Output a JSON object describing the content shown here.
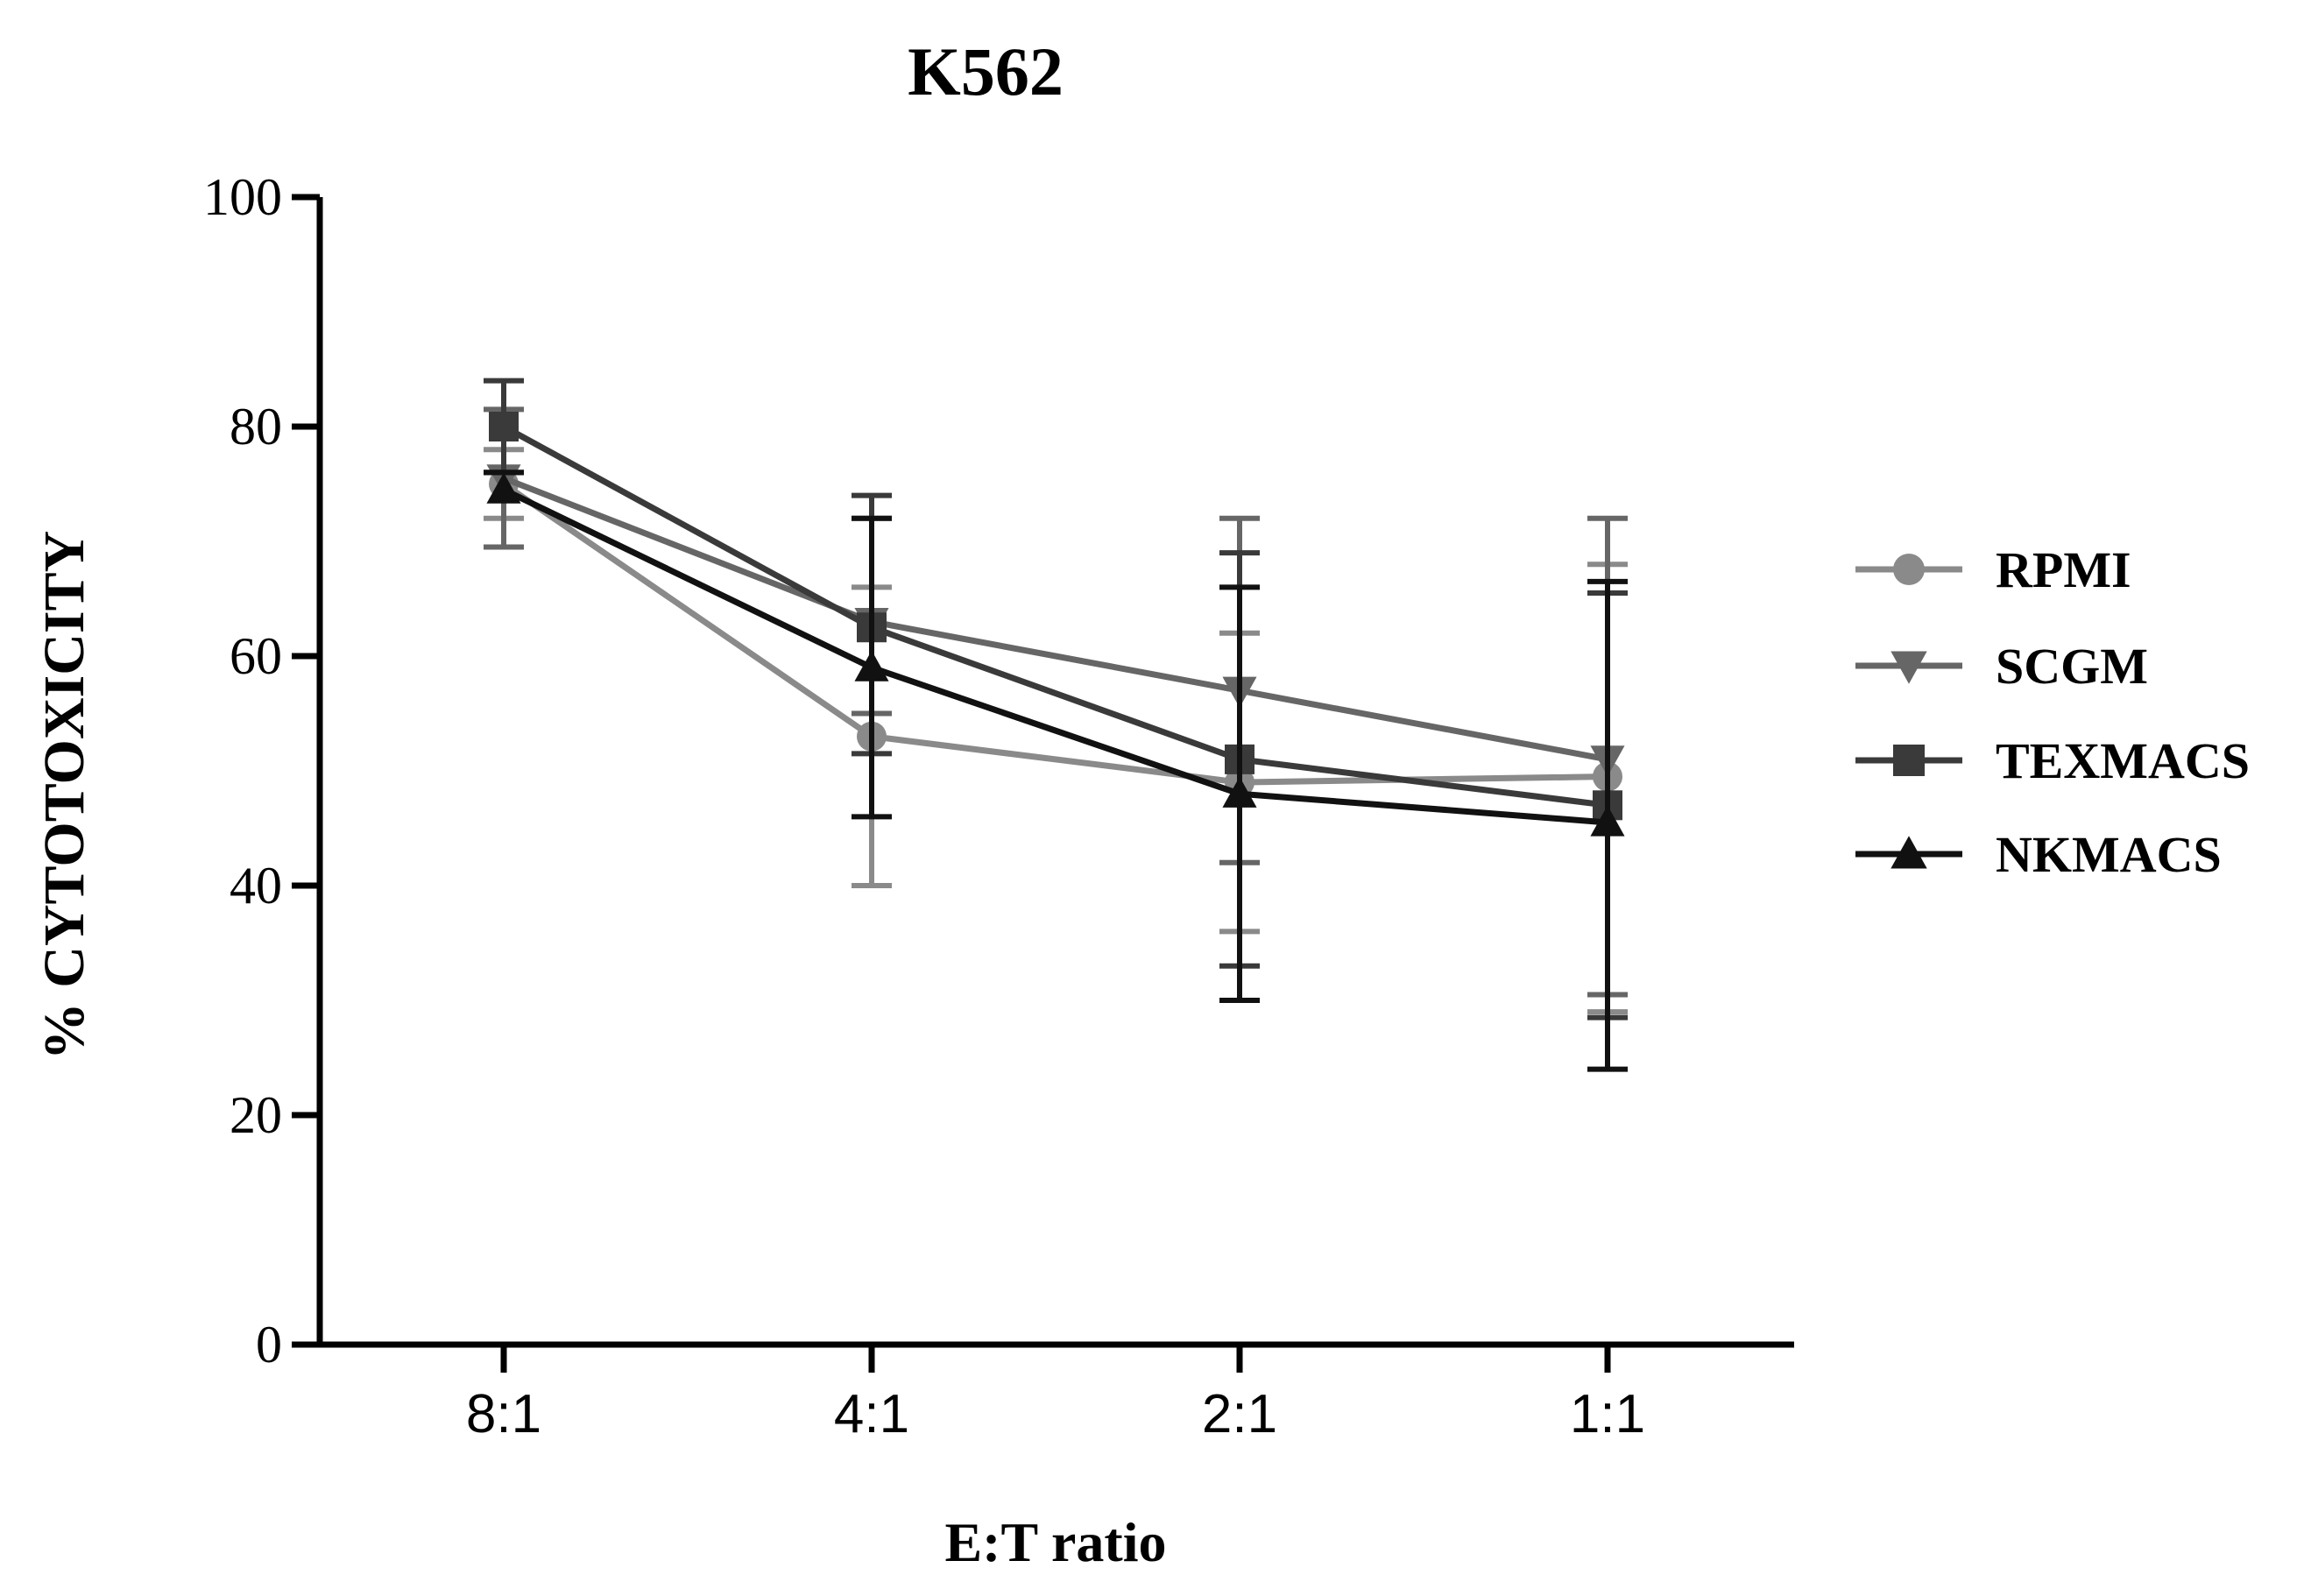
{
  "chart_data": {
    "type": "line",
    "title": "K562",
    "xlabel": "E:T ratio",
    "ylabel": "% CYTOTOXICITY",
    "categories": [
      "8:1",
      "4:1",
      "2:1",
      "1:1"
    ],
    "ylim": [
      0,
      100
    ],
    "yticks": [
      0,
      20,
      40,
      60,
      80,
      100
    ],
    "ytick_labels": [
      "0",
      "20",
      "40",
      "60",
      "80",
      "100"
    ],
    "legend_position": "right",
    "grid": false,
    "series": [
      {
        "name": "RPMI",
        "marker": "circle",
        "color": "#8a8a8a",
        "values": [
          75,
          53,
          49,
          49.5
        ],
        "err_low": [
          72,
          40,
          36,
          29
        ],
        "err_high": [
          78,
          66,
          62,
          68
        ]
      },
      {
        "name": "SCGM",
        "marker": "triangle-down",
        "color": "#666666",
        "values": [
          75.5,
          63,
          57,
          51
        ],
        "err_low": [
          69.5,
          55,
          42,
          30.5
        ],
        "err_high": [
          81.5,
          72,
          72,
          72
        ]
      },
      {
        "name": "TEXMACS",
        "marker": "square",
        "color": "#3a3a3a",
        "values": [
          80,
          62.5,
          51,
          47
        ],
        "err_low": [
          76,
          51.5,
          33,
          28.5
        ],
        "err_high": [
          84,
          74,
          69,
          65.5
        ]
      },
      {
        "name": "NKMACS",
        "marker": "triangle-up",
        "color": "#111111",
        "values": [
          74.5,
          59,
          48,
          45.5
        ],
        "err_low": [
          76,
          46,
          30,
          24
        ],
        "err_high": [
          76,
          72,
          66,
          66.5
        ]
      }
    ]
  }
}
